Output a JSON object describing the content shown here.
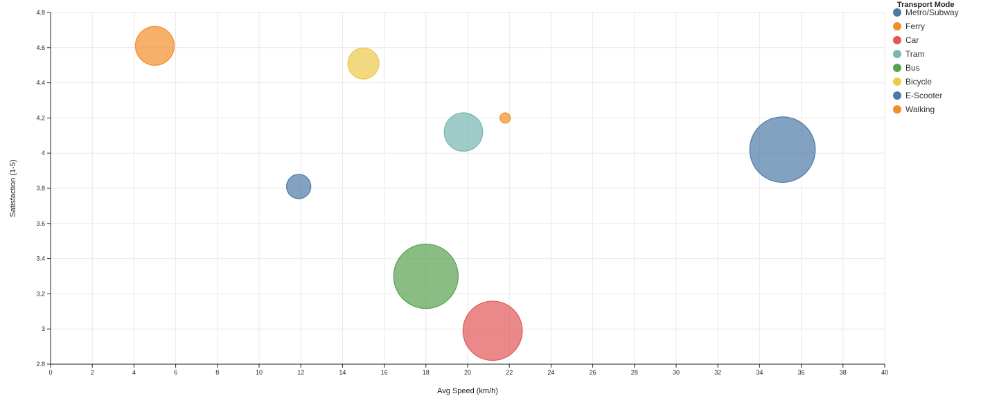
{
  "chart_data": {
    "type": "scatter",
    "subtype": "bubble",
    "xlabel": "Avg Speed (km/h)",
    "ylabel": "Satisfaction (1-5)",
    "xlim": [
      0,
      40
    ],
    "ylim": [
      2.8,
      4.8
    ],
    "x_ticks": [
      0,
      2,
      4,
      6,
      8,
      10,
      12,
      14,
      16,
      18,
      20,
      22,
      24,
      26,
      28,
      30,
      32,
      34,
      36,
      38,
      40
    ],
    "y_ticks": [
      2.8,
      3,
      3.2,
      3.4,
      3.6,
      3.8,
      4,
      4.2,
      4.4,
      4.6,
      4.8
    ],
    "y_tick_labels": [
      "2.8",
      "3",
      "3.2",
      "3.4",
      "3.6",
      "3.8",
      "4",
      "4.2",
      "4.4",
      "4.6",
      "4.8"
    ],
    "grid": true,
    "legend": {
      "title": "Transport Mode",
      "position": "right",
      "items": [
        {
          "label": "Metro/Subway",
          "color": "#4e79a7"
        },
        {
          "label": "Ferry",
          "color": "#f28e2b"
        },
        {
          "label": "Car",
          "color": "#e15759"
        },
        {
          "label": "Tram",
          "color": "#76b7b2"
        },
        {
          "label": "Bus",
          "color": "#59a14f"
        },
        {
          "label": "Bicycle",
          "color": "#edc948"
        },
        {
          "label": "E-Scooter",
          "color": "#4e79a7"
        },
        {
          "label": "Walking",
          "color": "#f28e2b"
        }
      ]
    },
    "points": [
      {
        "mode": "Walking",
        "x": 5.0,
        "y": 4.61,
        "size": 0.56,
        "color": "#f28e2b"
      },
      {
        "mode": "Bicycle",
        "x": 15.0,
        "y": 4.51,
        "size": 0.36,
        "color": "#edc948"
      },
      {
        "mode": "Ferry",
        "x": 21.8,
        "y": 4.2,
        "size": 0.04,
        "color": "#f28e2b"
      },
      {
        "mode": "Tram",
        "x": 19.8,
        "y": 4.12,
        "size": 0.55,
        "color": "#76b7b2"
      },
      {
        "mode": "Metro/Subway",
        "x": 35.1,
        "y": 4.02,
        "size": 1.6,
        "color": "#4e79a7"
      },
      {
        "mode": "E-Scooter",
        "x": 11.9,
        "y": 3.81,
        "size": 0.22,
        "color": "#4e79a7"
      },
      {
        "mode": "Bus",
        "x": 18.0,
        "y": 3.3,
        "size": 1.55,
        "color": "#59a14f"
      },
      {
        "mode": "Car",
        "x": 21.2,
        "y": 2.99,
        "size": 1.31,
        "color": "#e15759"
      }
    ]
  }
}
